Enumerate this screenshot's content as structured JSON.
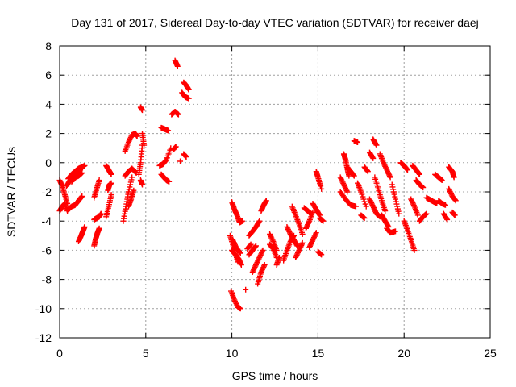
{
  "chart_data": {
    "type": "scatter",
    "title": "Day 131 of 2017, Sidereal Day-to-day VTEC variation (SDTVAR) for receiver daej",
    "xlabel": "GPS time / hours",
    "ylabel": "SDTVAR / TECUs",
    "xlim": [
      0,
      25
    ],
    "ylim": [
      -12,
      8
    ],
    "xticks": [
      0,
      5,
      10,
      15,
      20,
      25
    ],
    "yticks": [
      -12,
      -10,
      -8,
      -6,
      -4,
      -2,
      0,
      2,
      4,
      6,
      8
    ],
    "grid": true,
    "legend": "none",
    "marker": "+",
    "color": "#ff0000",
    "tracks": [
      {
        "x": [
          0.0,
          0.15,
          0.3,
          0.45
        ],
        "y": [
          -1.2,
          -1.6,
          -2.2,
          -2.8
        ]
      },
      {
        "x": [
          0.0,
          0.15,
          0.3,
          0.45
        ],
        "y": [
          -3.3,
          -3.0,
          -2.8,
          -3.3
        ]
      },
      {
        "x": [
          0.5,
          0.7,
          0.9,
          1.1,
          1.3,
          1.45
        ],
        "y": [
          -1.1,
          -0.8,
          -0.6,
          -0.4,
          -0.3,
          -0.2
        ]
      },
      {
        "x": [
          0.4,
          0.6,
          0.8,
          1.0,
          1.2
        ],
        "y": [
          -1.6,
          -1.2,
          -1.0,
          -0.6,
          -0.5
        ]
      },
      {
        "x": [
          0.7,
          0.9,
          1.1,
          1.3
        ],
        "y": [
          -1.3,
          -1.0,
          -0.9,
          -0.7
        ]
      },
      {
        "x": [
          0.5,
          0.7,
          0.9,
          1.1,
          1.3
        ],
        "y": [
          -3.2,
          -3.0,
          -2.9,
          -2.6,
          -2.3
        ]
      },
      {
        "x": [
          1.1,
          1.25,
          1.35,
          1.45
        ],
        "y": [
          -5.4,
          -5.0,
          -4.7,
          -4.4
        ]
      },
      {
        "x": [
          2.0,
          2.1,
          2.2,
          2.3
        ],
        "y": [
          -5.7,
          -5.2,
          -4.8,
          -4.5
        ]
      },
      {
        "x": [
          2.0,
          2.15,
          2.3,
          2.4
        ],
        "y": [
          -3.9,
          -3.8,
          -3.7,
          -3.5
        ]
      },
      {
        "x": [
          2.0,
          2.15,
          2.3
        ],
        "y": [
          -2.4,
          -1.8,
          -1.2
        ]
      },
      {
        "x": [
          2.7,
          2.85,
          3.0
        ],
        "y": [
          -0.2,
          -0.5,
          -0.8
        ]
      },
      {
        "x": [
          2.7,
          2.85,
          3.0
        ],
        "y": [
          -3.7,
          -3.0,
          -2.2
        ]
      },
      {
        "x": [
          2.8,
          2.9,
          3.0
        ],
        "y": [
          -1.9,
          -1.5,
          -1.4
        ]
      },
      {
        "x": [
          3.7,
          3.85,
          4.0,
          4.2
        ],
        "y": [
          -4.0,
          -3.0,
          -2.0,
          -1.0
        ]
      },
      {
        "x": [
          3.8,
          4.0,
          4.2,
          4.4,
          4.5
        ],
        "y": [
          0.8,
          1.4,
          1.9,
          2.0,
          1.8
        ]
      },
      {
        "x": [
          3.8,
          4.0,
          4.2,
          4.45
        ],
        "y": [
          -0.9,
          -0.6,
          -0.4,
          -0.7
        ]
      },
      {
        "x": [
          4.0,
          4.15,
          4.3
        ],
        "y": [
          -3.0,
          -2.5,
          -1.9
        ]
      },
      {
        "x": [
          4.6,
          4.7,
          4.8
        ],
        "y": [
          -0.8,
          0.0,
          1.2
        ]
      },
      {
        "x": [
          4.8,
          4.9
        ],
        "y": [
          2.0,
          1.2
        ]
      },
      {
        "x": [
          4.7,
          4.8
        ],
        "y": [
          3.8,
          3.6
        ]
      },
      {
        "x": [
          4.7,
          4.8
        ],
        "y": [
          -1.2,
          -1.5
        ]
      },
      {
        "x": [
          5.8,
          6.0,
          6.2,
          6.45
        ],
        "y": [
          -0.2,
          -0.1,
          0.2,
          1.0
        ]
      },
      {
        "x": [
          5.9,
          6.05,
          6.2,
          6.35
        ],
        "y": [
          -0.8,
          -1.0,
          -1.2,
          -1.3
        ]
      },
      {
        "x": [
          5.9,
          6.1,
          6.3
        ],
        "y": [
          2.4,
          2.3,
          2.2
        ]
      },
      {
        "x": [
          6.5,
          6.7,
          6.9
        ],
        "y": [
          3.3,
          3.5,
          3.3
        ]
      },
      {
        "x": [
          6.7,
          6.85
        ],
        "y": [
          7.0,
          6.6
        ]
      },
      {
        "x": [
          6.6,
          6.75
        ],
        "y": [
          0.9,
          1.1
        ]
      },
      {
        "x": [
          7.1,
          7.3,
          7.5
        ],
        "y": [
          4.8,
          4.5,
          4.4
        ]
      },
      {
        "x": [
          7.2,
          7.35,
          7.5
        ],
        "y": [
          5.5,
          5.3,
          5.0
        ]
      },
      {
        "x": [
          7.2,
          7.35
        ],
        "y": [
          0.6,
          0.4
        ]
      },
      {
        "x": [
          7.0
        ],
        "y": [
          0.1
        ]
      },
      {
        "x": [
          10.0,
          10.15,
          10.3,
          10.45,
          10.6
        ],
        "y": [
          -2.7,
          -3.2,
          -3.6,
          -4.1,
          -4.0
        ]
      },
      {
        "x": [
          9.9,
          10.05,
          10.2,
          10.35
        ],
        "y": [
          -5.0,
          -5.6,
          -6.2,
          -6.8
        ]
      },
      {
        "x": [
          10.0,
          10.2,
          10.4,
          10.55
        ],
        "y": [
          -6.0,
          -6.3,
          -6.6,
          -7.0
        ]
      },
      {
        "x": [
          9.95,
          10.15,
          10.35,
          10.5
        ],
        "y": [
          -8.8,
          -9.4,
          -9.9,
          -10.0
        ]
      },
      {
        "x": [
          10.05,
          10.25,
          10.5
        ],
        "y": [
          -5.3,
          -5.8,
          -6.2
        ]
      },
      {
        "x": [
          10.9,
          11.1
        ],
        "y": [
          -5.9,
          -5.6
        ]
      },
      {
        "x": [
          10.8
        ],
        "y": [
          -8.7
        ]
      },
      {
        "x": [
          11.0,
          11.2,
          11.4,
          11.6
        ],
        "y": [
          -5.0,
          -4.7,
          -4.4,
          -4.0
        ]
      },
      {
        "x": [
          11.2,
          11.4,
          11.6,
          11.8
        ],
        "y": [
          -7.5,
          -7.0,
          -6.5,
          -6.0
        ]
      },
      {
        "x": [
          11.5,
          11.7,
          11.9
        ],
        "y": [
          -8.3,
          -7.5,
          -7.0
        ]
      },
      {
        "x": [
          11.7,
          11.85,
          12.0
        ],
        "y": [
          -3.3,
          -2.9,
          -2.6
        ]
      },
      {
        "x": [
          11.0,
          11.2,
          11.4
        ],
        "y": [
          -6.3,
          -6.0,
          -5.7
        ]
      },
      {
        "x": [
          12.2,
          12.4,
          12.6
        ],
        "y": [
          -5.6,
          -5.9,
          -6.5
        ]
      },
      {
        "x": [
          12.2,
          12.4,
          12.6
        ],
        "y": [
          -4.9,
          -5.4,
          -6.0
        ]
      },
      {
        "x": [
          12.6,
          12.75
        ],
        "y": [
          -7.0,
          -6.5
        ]
      },
      {
        "x": [
          13.0,
          13.2,
          13.4,
          13.6
        ],
        "y": [
          -6.7,
          -6.0,
          -5.4,
          -5.0
        ]
      },
      {
        "x": [
          13.2,
          13.4,
          13.6,
          13.8
        ],
        "y": [
          -4.4,
          -4.9,
          -5.3,
          -5.7
        ]
      },
      {
        "x": [
          13.5,
          13.7,
          13.9,
          14.1
        ],
        "y": [
          -3.0,
          -3.6,
          -4.2,
          -4.9
        ]
      },
      {
        "x": [
          13.7,
          13.9,
          14.1
        ],
        "y": [
          -6.5,
          -6.0,
          -5.5
        ]
      },
      {
        "x": [
          14.2,
          14.4,
          14.6
        ],
        "y": [
          -3.1,
          -3.3,
          -3.5
        ]
      },
      {
        "x": [
          14.3,
          14.5,
          14.7
        ],
        "y": [
          -4.5,
          -4.0,
          -3.4
        ]
      },
      {
        "x": [
          14.5,
          14.7,
          14.9
        ],
        "y": [
          -5.8,
          -5.3,
          -4.8
        ]
      },
      {
        "x": [
          14.9,
          15.0,
          15.15
        ],
        "y": [
          -0.6,
          -1.0,
          -1.6
        ]
      },
      {
        "x": [
          14.7,
          14.9,
          15.1
        ],
        "y": [
          -2.8,
          -3.2,
          -3.6
        ]
      },
      {
        "x": [
          15.1,
          15.3
        ],
        "y": [
          -3.8,
          -4.0
        ]
      },
      {
        "x": [
          15.0,
          15.2
        ],
        "y": [
          -6.1,
          -6.3
        ]
      },
      {
        "x": [
          15.2
        ],
        "y": [
          -1.8
        ]
      },
      {
        "x": [
          16.3,
          16.6,
          16.9,
          17.2
        ],
        "y": [
          -2.0,
          -2.5,
          -2.9,
          -3.0
        ]
      },
      {
        "x": [
          16.5,
          16.6,
          16.7,
          16.8
        ],
        "y": [
          0.6,
          0.2,
          -0.4,
          -0.9
        ]
      },
      {
        "x": [
          16.7,
          16.9,
          17.1
        ],
        "y": [
          -0.3,
          -0.6,
          -0.9
        ]
      },
      {
        "x": [
          16.3,
          16.5,
          16.7
        ],
        "y": [
          -1.0,
          -1.5,
          -2.0
        ]
      },
      {
        "x": [
          17.1,
          17.3
        ],
        "y": [
          1.5,
          1.4
        ]
      },
      {
        "x": [
          17.3,
          17.5,
          17.8
        ],
        "y": [
          -1.4,
          -2.0,
          -3.0
        ]
      },
      {
        "x": [
          17.5,
          17.7
        ],
        "y": [
          -3.6,
          -3.8
        ]
      },
      {
        "x": [
          17.7,
          17.9
        ],
        "y": [
          -0.3,
          -0.6
        ]
      },
      {
        "x": [
          18.0,
          18.2
        ],
        "y": [
          0.7,
          0.3
        ]
      },
      {
        "x": [
          18.2,
          18.4
        ],
        "y": [
          1.6,
          1.2
        ]
      },
      {
        "x": [
          18.0,
          18.2,
          18.4,
          18.6
        ],
        "y": [
          -2.5,
          -3.0,
          -3.5,
          -3.7
        ]
      },
      {
        "x": [
          18.3,
          18.5,
          18.7,
          18.9
        ],
        "y": [
          -1.0,
          -1.8,
          -2.6,
          -3.3
        ]
      },
      {
        "x": [
          18.6,
          18.8,
          19.0,
          19.2
        ],
        "y": [
          0.6,
          0.0,
          -0.5,
          -1.0
        ]
      },
      {
        "x": [
          18.7,
          18.9,
          19.1
        ],
        "y": [
          -3.6,
          -4.0,
          -4.4
        ]
      },
      {
        "x": [
          19.0,
          19.2,
          19.5
        ],
        "y": [
          -4.5,
          -4.8,
          -4.7
        ]
      },
      {
        "x": [
          19.3,
          19.5,
          19.7
        ],
        "y": [
          -1.5,
          -2.5,
          -3.5
        ]
      },
      {
        "x": [
          19.8,
          20.0,
          20.2
        ],
        "y": [
          0.0,
          -0.2,
          -0.5
        ]
      },
      {
        "x": [
          20.0,
          20.2,
          20.4,
          20.6
        ],
        "y": [
          -4.0,
          -4.6,
          -5.3,
          -6.0
        ]
      },
      {
        "x": [
          20.4,
          20.6,
          20.8
        ],
        "y": [
          -2.5,
          -3.0,
          -3.6
        ]
      },
      {
        "x": [
          20.5,
          20.7,
          20.9
        ],
        "y": [
          -0.2,
          -0.5,
          -0.8
        ]
      },
      {
        "x": [
          20.7,
          20.9,
          21.1
        ],
        "y": [
          -1.2,
          -1.5,
          -1.7
        ]
      },
      {
        "x": [
          20.9,
          21.1,
          21.3
        ],
        "y": [
          -4.0,
          -3.7,
          -3.5
        ]
      },
      {
        "x": [
          21.3,
          21.6,
          21.9
        ],
        "y": [
          -2.4,
          -2.6,
          -2.8
        ]
      },
      {
        "x": [
          21.8,
          22.0,
          22.2
        ],
        "y": [
          -0.8,
          -1.0,
          -1.2
        ]
      },
      {
        "x": [
          22.0,
          22.2,
          22.4
        ],
        "y": [
          -2.6,
          -2.8,
          -2.9
        ]
      },
      {
        "x": [
          22.3,
          22.5
        ],
        "y": [
          -3.5,
          -3.9
        ]
      },
      {
        "x": [
          22.6,
          22.8,
          22.9
        ],
        "y": [
          -0.3,
          -0.6,
          -1.0
        ]
      },
      {
        "x": [
          22.6,
          22.8,
          23.0
        ],
        "y": [
          -1.8,
          -2.3,
          -2.6
        ]
      },
      {
        "x": [
          22.8,
          22.95
        ],
        "y": [
          -3.4,
          -3.6
        ]
      }
    ]
  }
}
